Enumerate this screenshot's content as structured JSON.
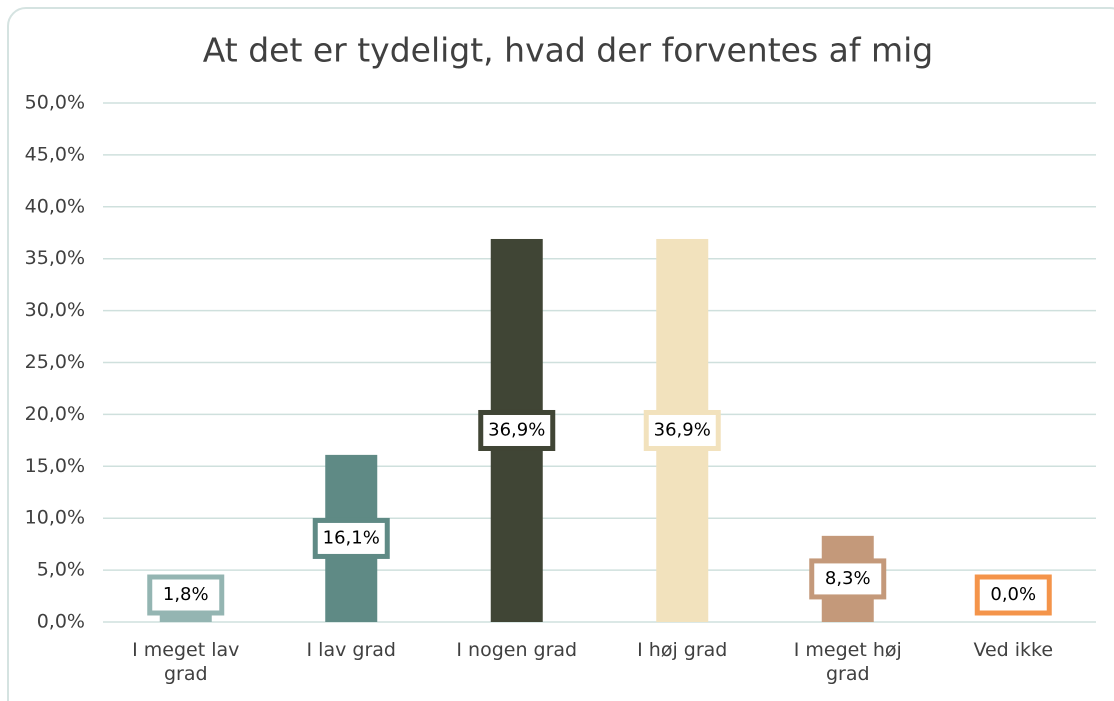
{
  "chart_data": {
    "type": "bar",
    "title": "At det er tydeligt, hvad der forventes af mig",
    "categories": [
      "I meget lav grad",
      "I lav grad",
      "I nogen grad",
      "I høj grad",
      "I meget høj grad",
      "Ved ikke"
    ],
    "values": [
      1.8,
      16.1,
      36.9,
      36.9,
      8.3,
      0.0
    ],
    "value_labels": [
      "1,8%",
      "16,1%",
      "36,9%",
      "36,9%",
      "8,3%",
      "0,0%"
    ],
    "colors": [
      "#94b5b2",
      "#5f8a85",
      "#404535",
      "#f2e2bd",
      "#c4997a",
      "#f4944a"
    ],
    "ylim": [
      0,
      50
    ],
    "yticks": [
      {
        "value": 0,
        "label": "0,0%"
      },
      {
        "value": 5,
        "label": "5,0%"
      },
      {
        "value": 10,
        "label": "10,0%"
      },
      {
        "value": 15,
        "label": "15,0%"
      },
      {
        "value": 20,
        "label": "20,0%"
      },
      {
        "value": 25,
        "label": "25,0%"
      },
      {
        "value": 30,
        "label": "30,0%"
      },
      {
        "value": 35,
        "label": "35,0%"
      },
      {
        "value": 40,
        "label": "40,0%"
      },
      {
        "value": 45,
        "label": "45,0%"
      },
      {
        "value": 50,
        "label": "50,0%"
      }
    ],
    "grid": true
  }
}
